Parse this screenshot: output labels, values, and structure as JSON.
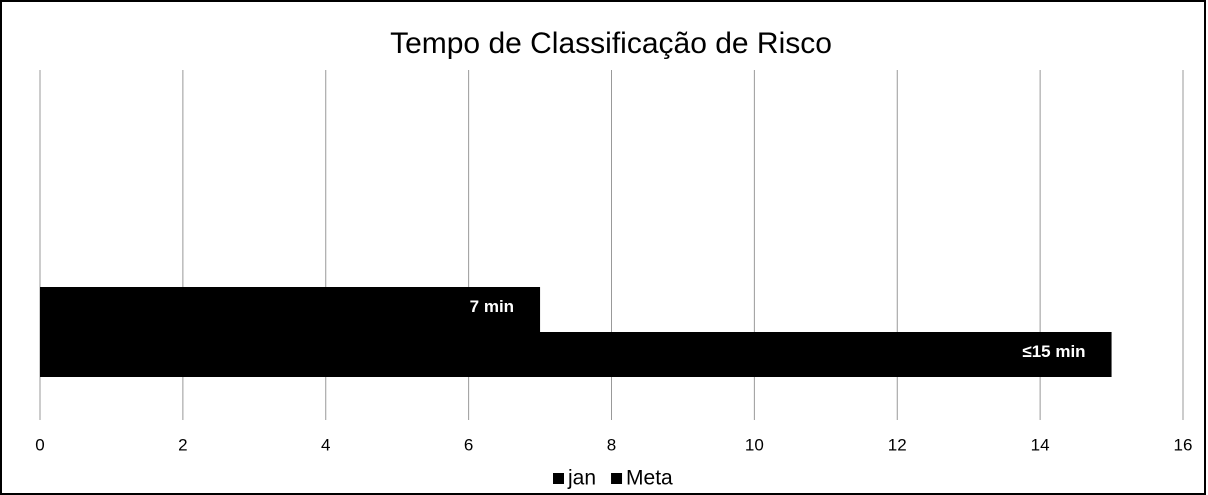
{
  "chart_data": {
    "type": "bar",
    "orientation": "horizontal",
    "title": "Tempo de Classificação de Risco",
    "categories": [
      null
    ],
    "series": [
      {
        "name": "jan",
        "color": "#000000",
        "values": [
          7
        ],
        "value_labels": [
          "7 min"
        ]
      },
      {
        "name": "Meta",
        "color": "#000000",
        "values": [
          15
        ],
        "value_labels": [
          "≤15 min"
        ]
      }
    ],
    "xlim": [
      0,
      16
    ],
    "xticks": [
      0,
      2,
      4,
      6,
      8,
      10,
      12,
      14,
      16
    ],
    "grid": true,
    "legend": "bottom"
  }
}
